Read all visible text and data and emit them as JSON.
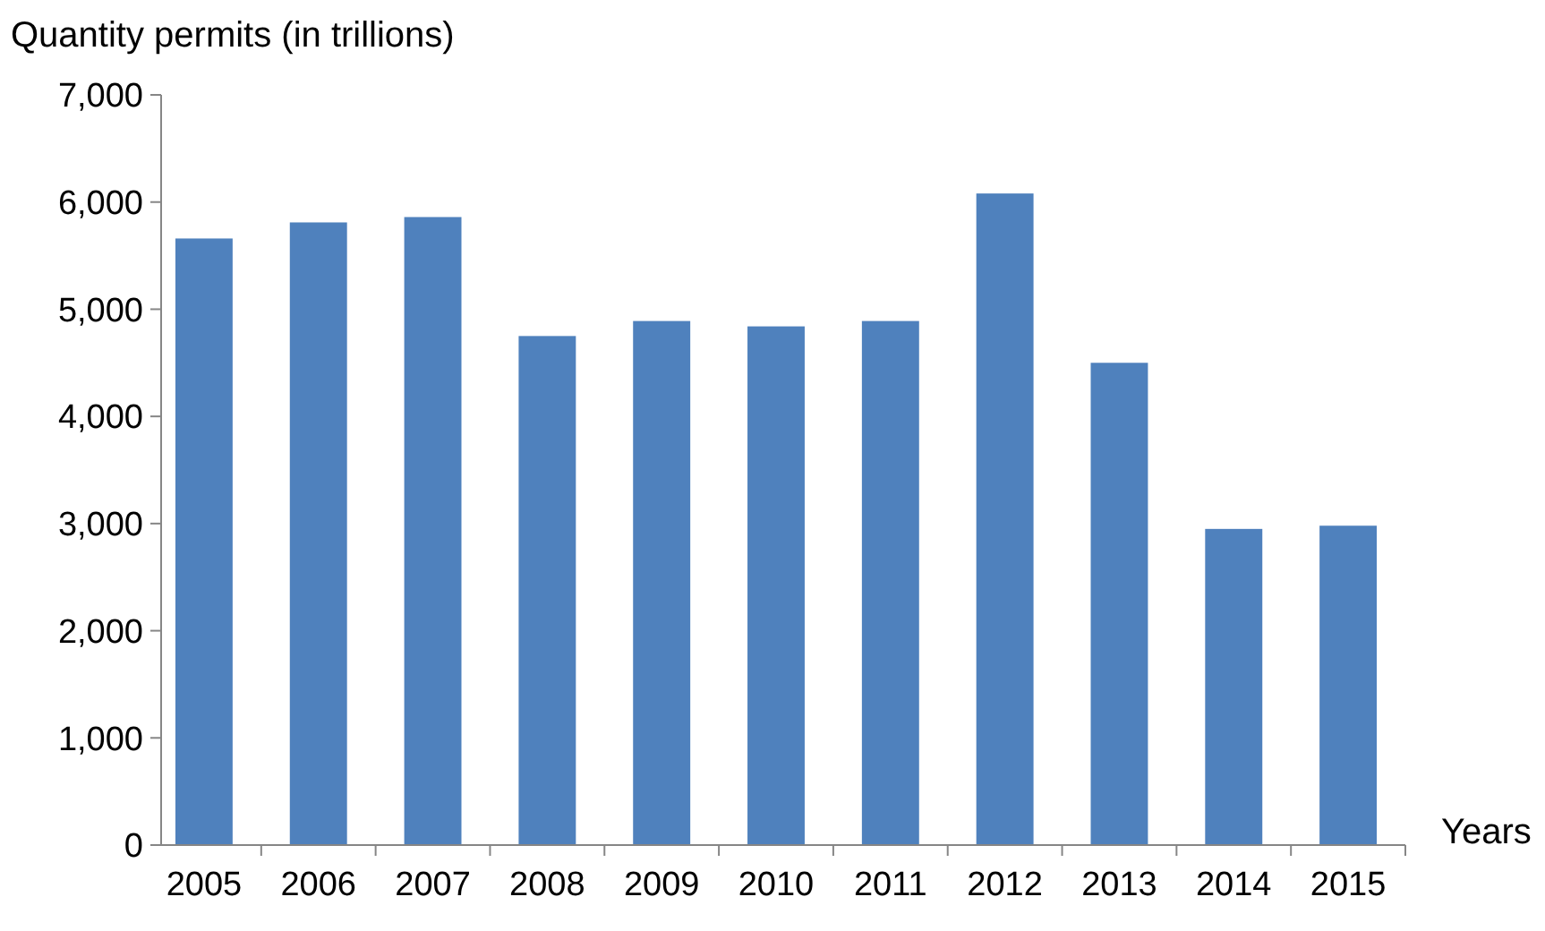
{
  "chart_data": {
    "type": "bar",
    "xlabel": "Years",
    "ylabel": "Quantity permits (in trillions)",
    "categories": [
      "2005",
      "2006",
      "2007",
      "2008",
      "2009",
      "2010",
      "2011",
      "2012",
      "2013",
      "2014",
      "2015"
    ],
    "values": [
      5660,
      5810,
      5860,
      4750,
      4890,
      4840,
      4890,
      6080,
      4500,
      2950,
      2980
    ],
    "color": "#4f81bd",
    "ylim": [
      0,
      7000
    ],
    "yticks": [
      {
        "value": 0,
        "label": "0"
      },
      {
        "value": 1000,
        "label": "1,000"
      },
      {
        "value": 2000,
        "label": "2,000"
      },
      {
        "value": 3000,
        "label": "3,000"
      },
      {
        "value": 4000,
        "label": "4,000"
      },
      {
        "value": 5000,
        "label": "5,000"
      },
      {
        "value": 6000,
        "label": "6,000"
      },
      {
        "value": 7000,
        "label": "7,000"
      }
    ],
    "grid": false
  }
}
